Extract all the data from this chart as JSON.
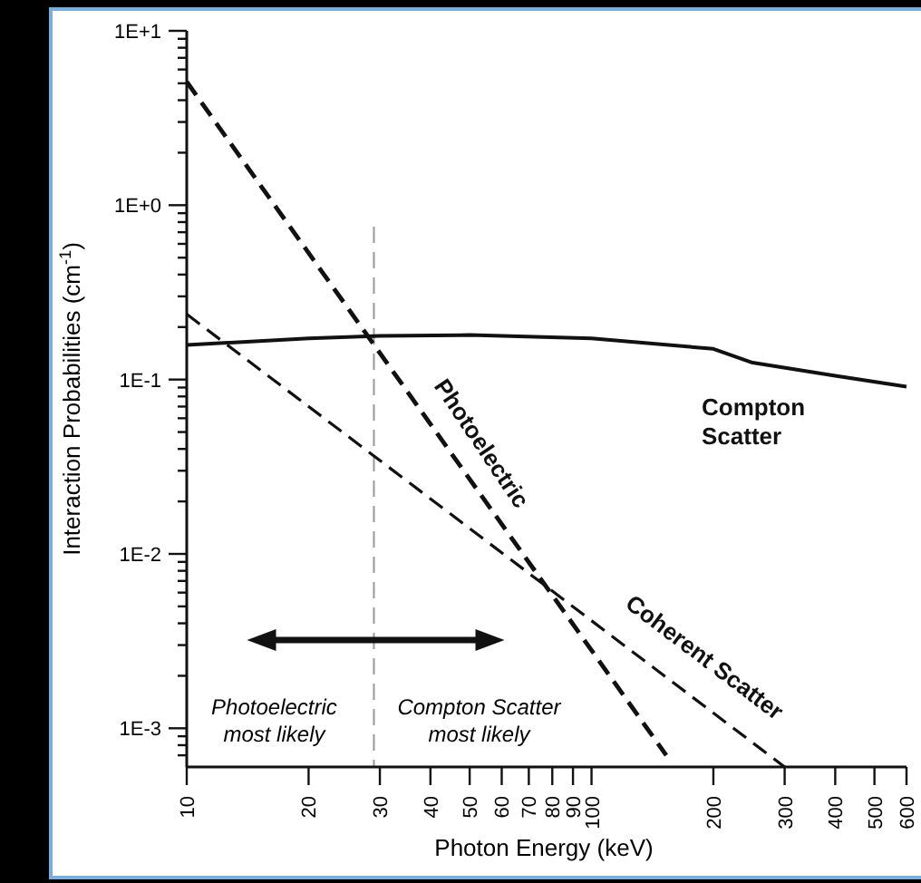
{
  "chart_data": {
    "type": "line",
    "xlabel": "Photon Energy (keV)",
    "ylabel": "Interaction Probabilities (cm$^{-1}$)",
    "log": "xy",
    "grid": false,
    "xlim": [
      10,
      600
    ],
    "ylim": [
      0.0006,
      10
    ],
    "xticks": [
      10,
      20,
      30,
      40,
      50,
      60,
      70,
      80,
      90,
      100,
      200,
      300,
      400,
      500,
      600
    ],
    "yticks": [
      {
        "value": 10,
        "label": "1E+1"
      },
      {
        "value": 1,
        "label": "1E+0"
      },
      {
        "value": 0.1,
        "label": "1E-1"
      },
      {
        "value": 0.01,
        "label": "1E-2"
      },
      {
        "value": 0.001,
        "label": "1E-3"
      },
      {
        "value": 0.0007,
        "label": null
      },
      {
        "value": 0.0008,
        "label": null
      },
      {
        "value": 0.0009,
        "label": null
      },
      {
        "value": 0.002,
        "label": null
      },
      {
        "value": 0.003,
        "label": null
      },
      {
        "value": 0.004,
        "label": null
      },
      {
        "value": 0.005,
        "label": null
      },
      {
        "value": 0.006,
        "label": null
      },
      {
        "value": 0.007,
        "label": null
      },
      {
        "value": 0.008,
        "label": null
      },
      {
        "value": 0.009,
        "label": null
      },
      {
        "value": 0.02,
        "label": null
      },
      {
        "value": 0.03,
        "label": null
      },
      {
        "value": 0.04,
        "label": null
      },
      {
        "value": 0.05,
        "label": null
      },
      {
        "value": 0.06,
        "label": null
      },
      {
        "value": 0.07,
        "label": null
      },
      {
        "value": 0.08,
        "label": null
      },
      {
        "value": 0.09,
        "label": null
      },
      {
        "value": 0.2,
        "label": null
      },
      {
        "value": 0.3,
        "label": null
      },
      {
        "value": 0.4,
        "label": null
      },
      {
        "value": 0.5,
        "label": null
      },
      {
        "value": 0.6,
        "label": null
      },
      {
        "value": 0.7,
        "label": null
      },
      {
        "value": 0.8,
        "label": null
      },
      {
        "value": 0.9,
        "label": null
      },
      {
        "value": 2,
        "label": null
      },
      {
        "value": 3,
        "label": null
      },
      {
        "value": 4,
        "label": null
      },
      {
        "value": 5,
        "label": null
      },
      {
        "value": 6,
        "label": null
      },
      {
        "value": 7,
        "label": null
      },
      {
        "value": 8,
        "label": null
      },
      {
        "value": 9,
        "label": null
      }
    ],
    "series": [
      {
        "name": "Photoelectric",
        "color": "#111111",
        "line_style": "dashed",
        "x": [
          10,
          153
        ],
        "values": [
          5.1,
          0.0007
        ]
      },
      {
        "name": "Coherent Scatter",
        "color": "#111111",
        "line_style": "dashed",
        "x": [
          10,
          300
        ],
        "values": [
          0.237,
          0.0006
        ]
      },
      {
        "name": "Compton Scatter",
        "color": "#111111",
        "line_style": "solid",
        "x": [
          10,
          20,
          30,
          50,
          100,
          200,
          250,
          400,
          600
        ],
        "values": [
          0.158,
          0.172,
          0.178,
          0.18,
          0.172,
          0.15,
          0.125,
          0.105,
          0.091
        ]
      }
    ],
    "ref_lines": [
      {
        "axis": "x",
        "value": 29,
        "color": "#999999",
        "line_style": "dashed"
      }
    ],
    "annotations": [
      "Photoelectric most likely",
      "Compton Scatter most likely"
    ]
  }
}
